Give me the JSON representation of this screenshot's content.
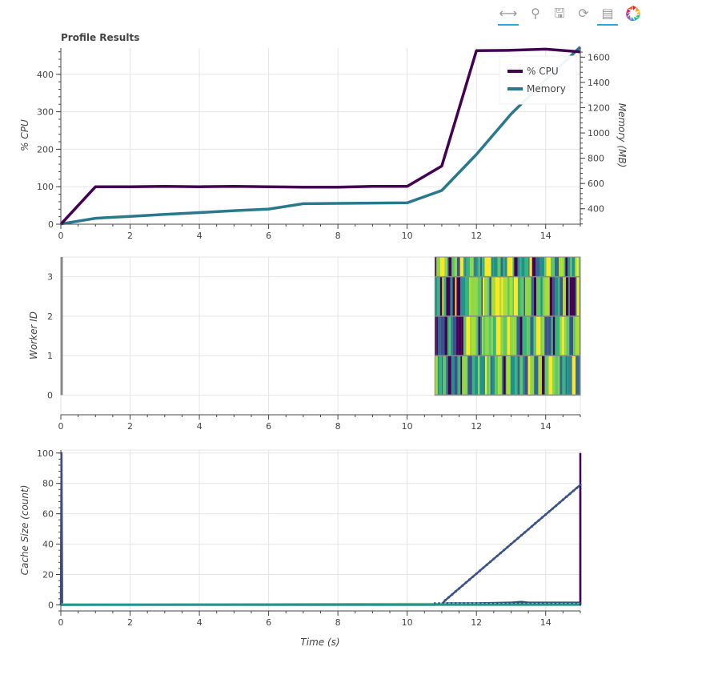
{
  "toolbar": {
    "tools": [
      {
        "name": "pan-tool",
        "glyph": "⟷",
        "active": true
      },
      {
        "name": "wheel-zoom-tool",
        "glyph": "⚲",
        "active": false
      },
      {
        "name": "save-tool",
        "glyph": "🖫",
        "active": false
      },
      {
        "name": "reset-tool",
        "glyph": "⟳",
        "active": false
      },
      {
        "name": "hover-tool",
        "glyph": "▤",
        "active": true
      }
    ],
    "logo_icon": "bokeh-logo-icon"
  },
  "colors": {
    "cpu": "#440154",
    "memory": "#2a788e",
    "grid": "#e5e5e5",
    "axis": "#444444"
  },
  "chart_data": [
    {
      "type": "line",
      "title": "Profile Results",
      "xlabel": "",
      "ylabel": "% CPU",
      "y2label": "Memory (MB)",
      "xlim": [
        0,
        15
      ],
      "ylim": [
        0,
        470
      ],
      "y2lim": [
        278,
        1672
      ],
      "x_ticks": [
        "0",
        "2",
        "4",
        "6",
        "8",
        "10",
        "12",
        "14"
      ],
      "y_ticks": [
        "0",
        "100",
        "200",
        "300",
        "400"
      ],
      "y2_ticks": [
        "400",
        "600",
        "800",
        "1000",
        "1200",
        "1400",
        "1600"
      ],
      "legend": {
        "placement": "top-right",
        "entries": [
          "% CPU",
          "Memory"
        ]
      },
      "series": [
        {
          "name": "% CPU",
          "axis": "y",
          "x": [
            0,
            1,
            2,
            3,
            4,
            5,
            6,
            7,
            8,
            9,
            10,
            11,
            12,
            13,
            14,
            15
          ],
          "values": [
            0,
            100,
            100,
            101,
            100,
            101,
            100,
            99,
            99,
            101,
            101,
            155,
            463,
            464,
            467,
            460
          ]
        },
        {
          "name": "Memory",
          "axis": "y2",
          "x": [
            0,
            1,
            2,
            3,
            4,
            5,
            6,
            7,
            8,
            9,
            10,
            11,
            12,
            13,
            14,
            15
          ],
          "values": [
            280,
            325,
            340,
            355,
            370,
            385,
            398,
            440,
            443,
            445,
            447,
            545,
            830,
            1150,
            1420,
            1680
          ]
        }
      ]
    },
    {
      "type": "heatmap",
      "title": "",
      "xlabel": "",
      "ylabel": "Worker ID",
      "xlim": [
        0,
        15
      ],
      "ylim": [
        -0.5,
        3.5
      ],
      "x_ticks": [
        "0",
        "2",
        "4",
        "6",
        "8",
        "10",
        "12",
        "14"
      ],
      "y_ticks": [
        "0",
        "1",
        "2",
        "3"
      ],
      "task_start": 10.8,
      "task_end": 15.0,
      "workers": [
        0,
        1,
        2,
        3
      ],
      "palette": [
        "#440154",
        "#3b528b",
        "#21918c",
        "#5ec962",
        "#35b779",
        "#addc30",
        "#fde725",
        "#31688e",
        "#90d743"
      ]
    },
    {
      "type": "line",
      "title": "",
      "xlabel": "Time (s)",
      "ylabel": "Cache Size (count)",
      "xlim": [
        0,
        15
      ],
      "ylim": [
        -4,
        102
      ],
      "x_ticks": [
        "0",
        "2",
        "4",
        "6",
        "8",
        "10",
        "12",
        "14"
      ],
      "y_ticks": [
        "0",
        "20",
        "40",
        "60",
        "80",
        "100"
      ],
      "series": [
        {
          "x": [
            0,
            0.02,
            0.04,
            10.8,
            11.0,
            11.1,
            15.0,
            15.0,
            15.02
          ],
          "values": [
            0,
            100,
            0,
            0,
            0.5,
            3,
            79,
            0,
            0
          ],
          "color": "#3b528b"
        },
        {
          "x": [
            0,
            10.8,
            11.2,
            12,
            13,
            13.3,
            13.5,
            14,
            15
          ],
          "values": [
            0,
            0.5,
            1,
            1,
            1.5,
            2,
            1.5,
            1.5,
            1.5
          ],
          "color": "#2c4f80"
        },
        {
          "x": [
            0,
            6,
            10.8,
            15
          ],
          "values": [
            0.3,
            0.5,
            0.7,
            0.7
          ],
          "color": "#5ec962"
        },
        {
          "x": [
            0,
            10.8,
            15
          ],
          "values": [
            0,
            0,
            0
          ],
          "color": "#21918c"
        },
        {
          "x": [
            15.0,
            15.0
          ],
          "values": [
            0,
            100
          ],
          "color": "#440154"
        }
      ]
    }
  ]
}
